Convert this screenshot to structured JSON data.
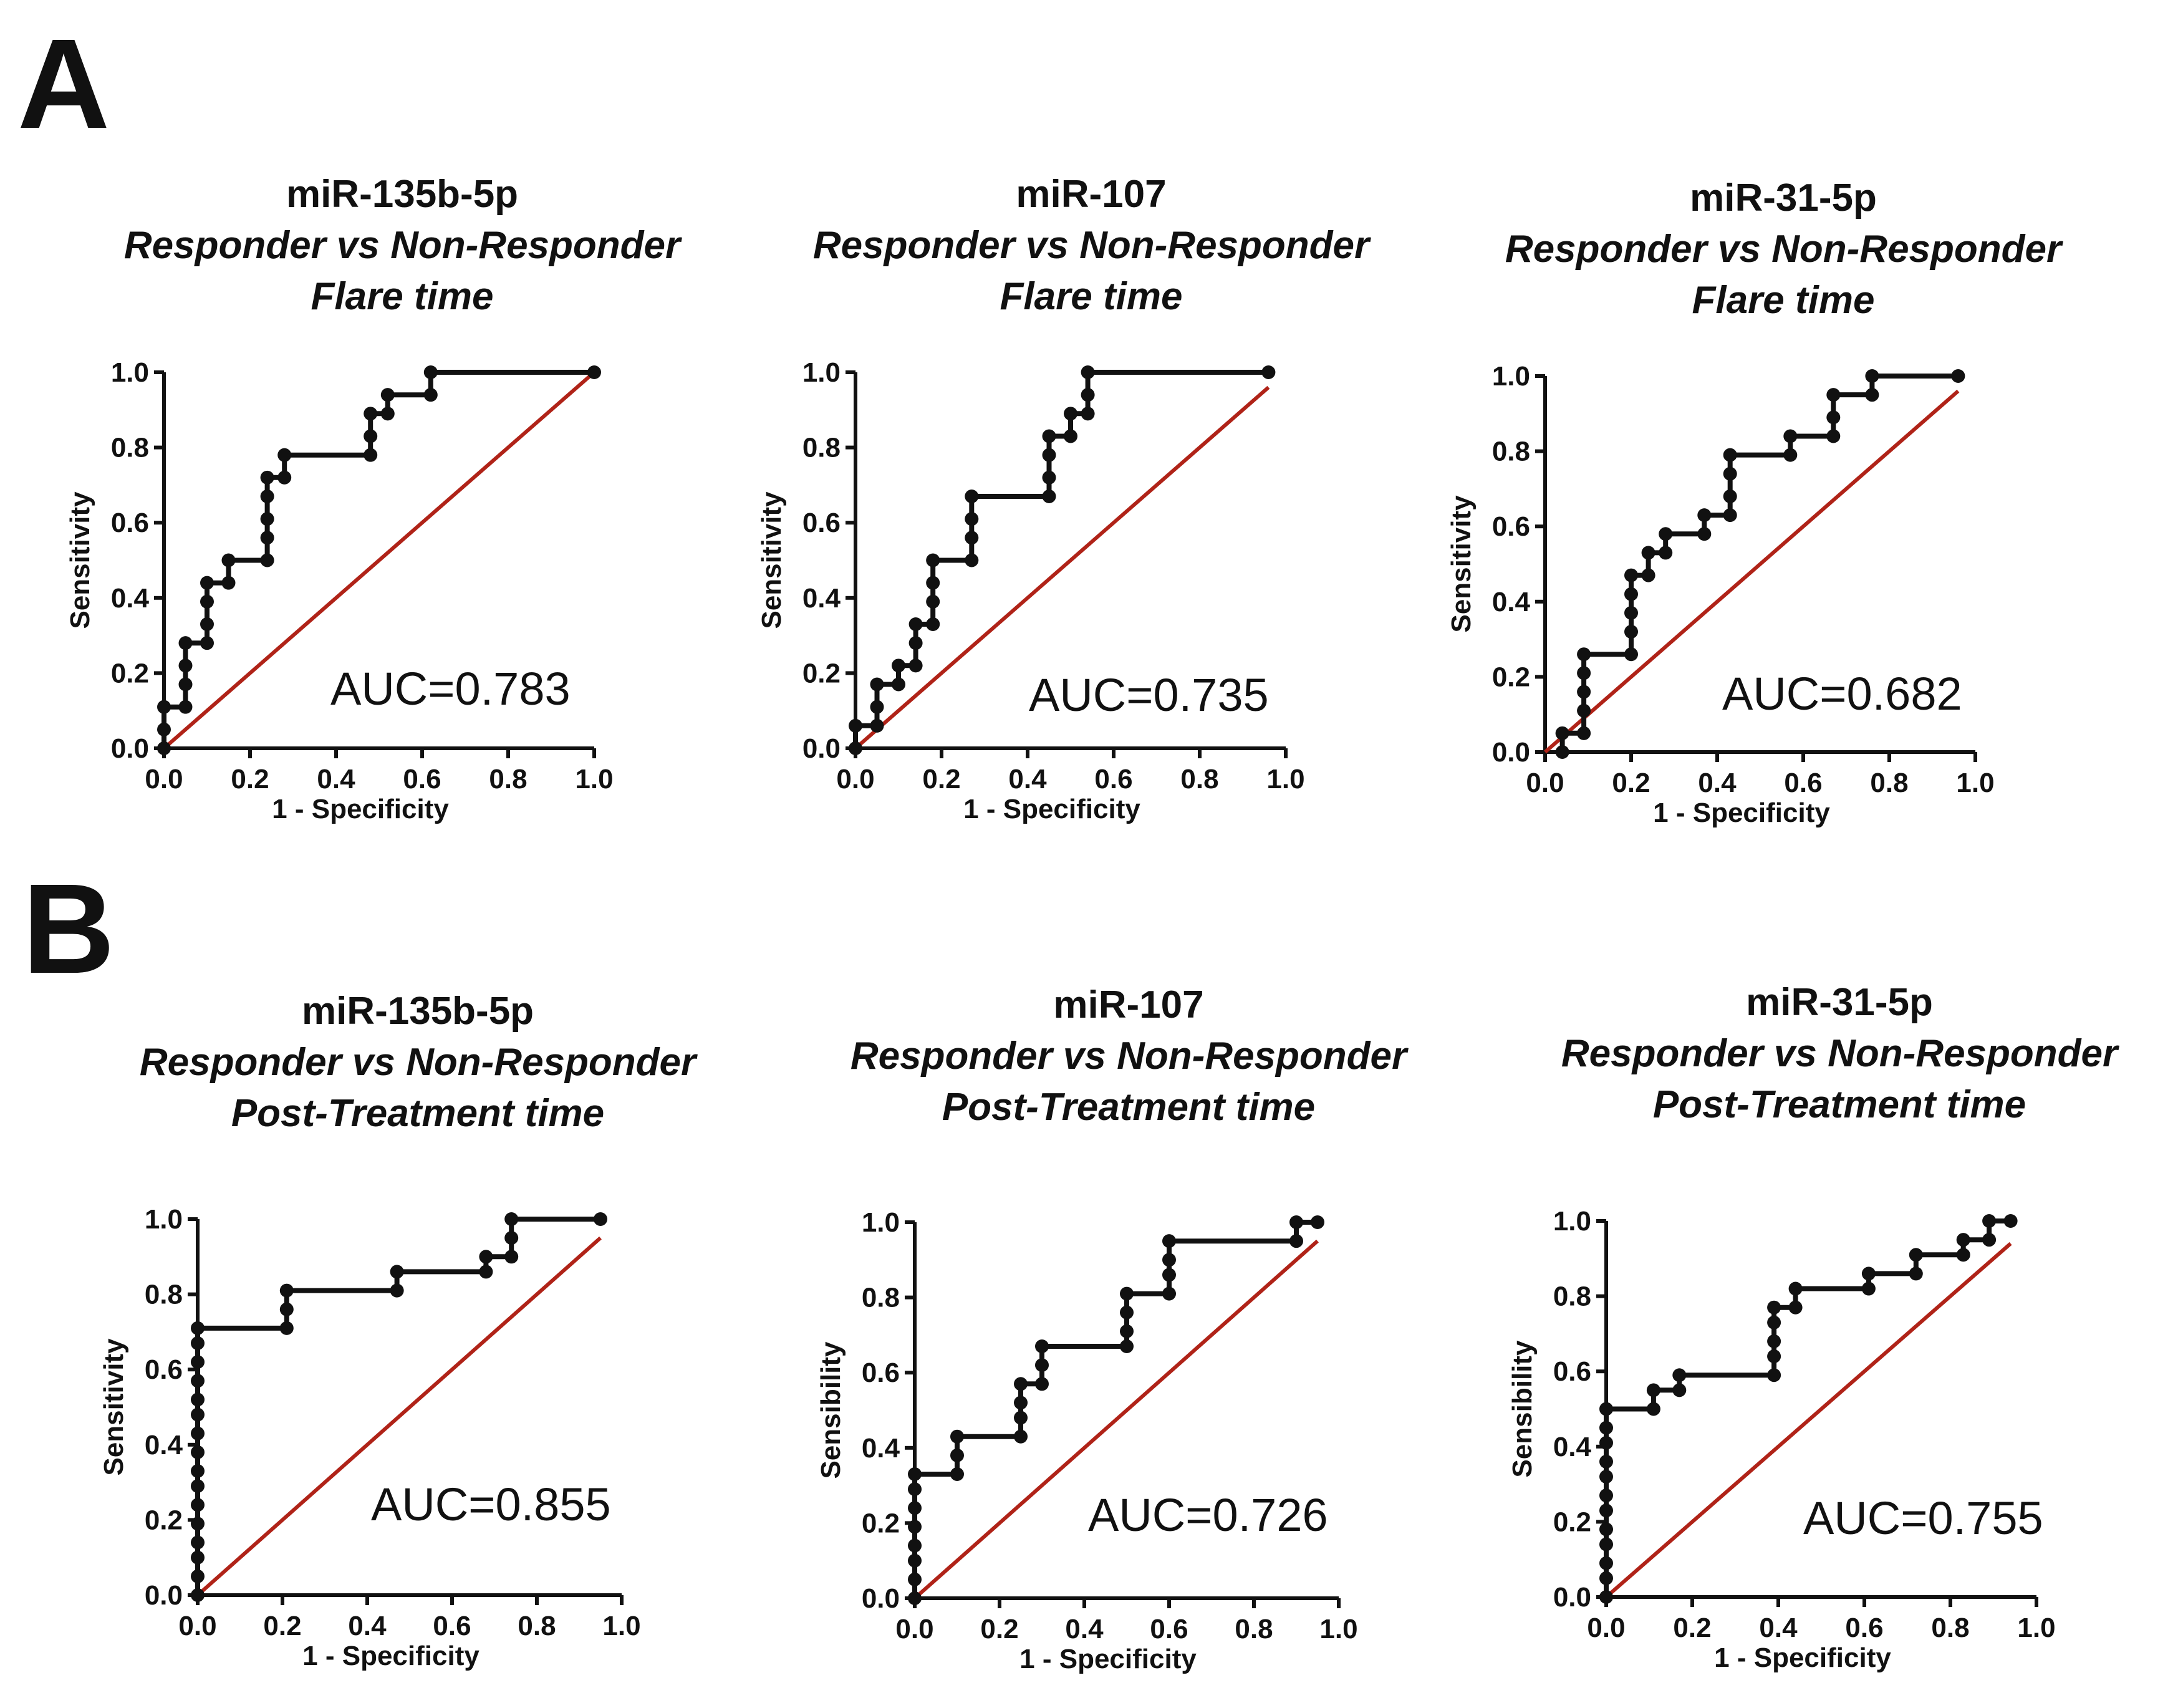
{
  "panel_labels": [
    "A",
    "B"
  ],
  "colors": {
    "roc_curve": "#111111",
    "reference_line": "#b02318",
    "text": "#111111"
  },
  "chart_data": [
    {
      "type": "line",
      "title": [
        "miR-135b-5p",
        "Responder vs Non-Responder",
        "Flare time"
      ],
      "xlabel": "1 - Specificity",
      "ylabel": "Sensitivity",
      "xlim": [
        0,
        1
      ],
      "ylim": [
        0,
        1
      ],
      "ticks": [
        "0.0",
        "0.2",
        "0.4",
        "0.6",
        "0.8",
        "1.0"
      ],
      "annotation": "AUC=0.783",
      "reference_end": [
        1.0,
        1.0
      ],
      "points": [
        [
          0,
          0
        ],
        [
          0,
          0.05
        ],
        [
          0,
          0.11
        ],
        [
          0.05,
          0.11
        ],
        [
          0.05,
          0.17
        ],
        [
          0.05,
          0.22
        ],
        [
          0.05,
          0.28
        ],
        [
          0.1,
          0.28
        ],
        [
          0.1,
          0.33
        ],
        [
          0.1,
          0.39
        ],
        [
          0.1,
          0.44
        ],
        [
          0.15,
          0.44
        ],
        [
          0.15,
          0.5
        ],
        [
          0.24,
          0.5
        ],
        [
          0.24,
          0.56
        ],
        [
          0.24,
          0.61
        ],
        [
          0.24,
          0.67
        ],
        [
          0.24,
          0.72
        ],
        [
          0.28,
          0.72
        ],
        [
          0.28,
          0.78
        ],
        [
          0.48,
          0.78
        ],
        [
          0.48,
          0.83
        ],
        [
          0.48,
          0.89
        ],
        [
          0.52,
          0.89
        ],
        [
          0.52,
          0.94
        ],
        [
          0.62,
          0.94
        ],
        [
          0.62,
          1
        ],
        [
          1,
          1
        ]
      ]
    },
    {
      "type": "line",
      "title": [
        "miR-107",
        "Responder vs Non-Responder",
        "Flare time"
      ],
      "xlabel": "1 - Specificity",
      "ylabel": "Sensitivity",
      "xlim": [
        0,
        1
      ],
      "ylim": [
        0,
        1
      ],
      "ticks": [
        "0.0",
        "0.2",
        "0.4",
        "0.6",
        "0.8",
        "1.0"
      ],
      "annotation": "AUC=0.735",
      "reference_end": [
        0.96,
        0.96
      ],
      "points": [
        [
          0,
          0
        ],
        [
          0,
          0.06
        ],
        [
          0.05,
          0.06
        ],
        [
          0.05,
          0.11
        ],
        [
          0.05,
          0.17
        ],
        [
          0.1,
          0.17
        ],
        [
          0.1,
          0.22
        ],
        [
          0.14,
          0.22
        ],
        [
          0.14,
          0.28
        ],
        [
          0.14,
          0.33
        ],
        [
          0.18,
          0.33
        ],
        [
          0.18,
          0.39
        ],
        [
          0.18,
          0.44
        ],
        [
          0.18,
          0.5
        ],
        [
          0.27,
          0.5
        ],
        [
          0.27,
          0.56
        ],
        [
          0.27,
          0.61
        ],
        [
          0.27,
          0.67
        ],
        [
          0.45,
          0.67
        ],
        [
          0.45,
          0.72
        ],
        [
          0.45,
          0.78
        ],
        [
          0.45,
          0.83
        ],
        [
          0.5,
          0.83
        ],
        [
          0.5,
          0.89
        ],
        [
          0.54,
          0.89
        ],
        [
          0.54,
          0.94
        ],
        [
          0.54,
          1
        ],
        [
          0.96,
          1
        ]
      ]
    },
    {
      "type": "line",
      "title": [
        "miR-31-5p",
        "Responder vs Non-Responder",
        "Flare time"
      ],
      "xlabel": "1 - Specificity",
      "ylabel": "Sensitivity",
      "xlim": [
        0,
        1
      ],
      "ylim": [
        0,
        1
      ],
      "ticks": [
        "0.0",
        "0.2",
        "0.4",
        "0.6",
        "0.8",
        "1.0"
      ],
      "annotation": "AUC=0.682",
      "reference_end": [
        0.96,
        0.96
      ],
      "points": [
        [
          0.04,
          0
        ],
        [
          0.04,
          0.05
        ],
        [
          0.09,
          0.05
        ],
        [
          0.09,
          0.11
        ],
        [
          0.09,
          0.16
        ],
        [
          0.09,
          0.21
        ],
        [
          0.09,
          0.26
        ],
        [
          0.2,
          0.26
        ],
        [
          0.2,
          0.32
        ],
        [
          0.2,
          0.37
        ],
        [
          0.2,
          0.42
        ],
        [
          0.2,
          0.47
        ],
        [
          0.24,
          0.47
        ],
        [
          0.24,
          0.53
        ],
        [
          0.28,
          0.53
        ],
        [
          0.28,
          0.58
        ],
        [
          0.37,
          0.58
        ],
        [
          0.37,
          0.63
        ],
        [
          0.43,
          0.63
        ],
        [
          0.43,
          0.68
        ],
        [
          0.43,
          0.74
        ],
        [
          0.43,
          0.79
        ],
        [
          0.57,
          0.79
        ],
        [
          0.57,
          0.84
        ],
        [
          0.67,
          0.84
        ],
        [
          0.67,
          0.89
        ],
        [
          0.67,
          0.95
        ],
        [
          0.76,
          0.95
        ],
        [
          0.76,
          1
        ],
        [
          0.96,
          1
        ]
      ]
    },
    {
      "type": "line",
      "title": [
        "miR-135b-5p",
        "Responder vs Non-Responder",
        "Post-Treatment time"
      ],
      "xlabel": "1 - Specificity",
      "ylabel": "Sensitivity",
      "xlim": [
        0,
        1
      ],
      "ylim": [
        0,
        1
      ],
      "ticks": [
        "0.0",
        "0.2",
        "0.4",
        "0.6",
        "0.8",
        "1.0"
      ],
      "annotation": "AUC=0.855",
      "reference_end": [
        0.95,
        0.95
      ],
      "points": [
        [
          0,
          0
        ],
        [
          0,
          0.05
        ],
        [
          0,
          0.1
        ],
        [
          0,
          0.14
        ],
        [
          0,
          0.19
        ],
        [
          0,
          0.24
        ],
        [
          0,
          0.29
        ],
        [
          0,
          0.33
        ],
        [
          0,
          0.38
        ],
        [
          0,
          0.43
        ],
        [
          0,
          0.48
        ],
        [
          0,
          0.52
        ],
        [
          0,
          0.57
        ],
        [
          0,
          0.62
        ],
        [
          0,
          0.67
        ],
        [
          0,
          0.71
        ],
        [
          0.21,
          0.71
        ],
        [
          0.21,
          0.76
        ],
        [
          0.21,
          0.81
        ],
        [
          0.47,
          0.81
        ],
        [
          0.47,
          0.86
        ],
        [
          0.68,
          0.86
        ],
        [
          0.68,
          0.9
        ],
        [
          0.74,
          0.9
        ],
        [
          0.74,
          0.95
        ],
        [
          0.74,
          1
        ],
        [
          0.95,
          1
        ]
      ]
    },
    {
      "type": "line",
      "title": [
        "miR-107",
        "Responder vs Non-Responder",
        "Post-Treatment time"
      ],
      "xlabel": "1 - Specificity",
      "ylabel": "Sensibility",
      "xlim": [
        0,
        1
      ],
      "ylim": [
        0,
        1
      ],
      "ticks": [
        "0.0",
        "0.2",
        "0.4",
        "0.6",
        "0.8",
        "1.0"
      ],
      "annotation": "AUC=0.726",
      "reference_end": [
        0.95,
        0.95
      ],
      "points": [
        [
          0,
          0
        ],
        [
          0,
          0.05
        ],
        [
          0,
          0.1
        ],
        [
          0,
          0.14
        ],
        [
          0,
          0.19
        ],
        [
          0,
          0.24
        ],
        [
          0,
          0.29
        ],
        [
          0,
          0.33
        ],
        [
          0.1,
          0.33
        ],
        [
          0.1,
          0.38
        ],
        [
          0.1,
          0.43
        ],
        [
          0.25,
          0.43
        ],
        [
          0.25,
          0.48
        ],
        [
          0.25,
          0.52
        ],
        [
          0.25,
          0.57
        ],
        [
          0.3,
          0.57
        ],
        [
          0.3,
          0.62
        ],
        [
          0.3,
          0.67
        ],
        [
          0.5,
          0.67
        ],
        [
          0.5,
          0.71
        ],
        [
          0.5,
          0.76
        ],
        [
          0.5,
          0.81
        ],
        [
          0.6,
          0.81
        ],
        [
          0.6,
          0.86
        ],
        [
          0.6,
          0.9
        ],
        [
          0.6,
          0.95
        ],
        [
          0.9,
          0.95
        ],
        [
          0.9,
          1
        ],
        [
          0.95,
          1
        ]
      ]
    },
    {
      "type": "line",
      "title": [
        "miR-31-5p",
        "Responder vs Non-Responder",
        "Post-Treatment time"
      ],
      "xlabel": "1 - Specificity",
      "ylabel": "Sensibility",
      "xlim": [
        0,
        1
      ],
      "ylim": [
        0,
        1
      ],
      "ticks": [
        "0.0",
        "0.2",
        "0.4",
        "0.6",
        "0.8",
        "1.0"
      ],
      "annotation": "AUC=0.755",
      "reference_end": [
        0.94,
        0.94
      ],
      "points": [
        [
          0,
          0
        ],
        [
          0,
          0.05
        ],
        [
          0,
          0.09
        ],
        [
          0,
          0.14
        ],
        [
          0,
          0.18
        ],
        [
          0,
          0.23
        ],
        [
          0,
          0.27
        ],
        [
          0,
          0.32
        ],
        [
          0,
          0.36
        ],
        [
          0,
          0.41
        ],
        [
          0,
          0.45
        ],
        [
          0,
          0.5
        ],
        [
          0.11,
          0.5
        ],
        [
          0.11,
          0.55
        ],
        [
          0.17,
          0.55
        ],
        [
          0.17,
          0.59
        ],
        [
          0.39,
          0.59
        ],
        [
          0.39,
          0.64
        ],
        [
          0.39,
          0.68
        ],
        [
          0.39,
          0.73
        ],
        [
          0.39,
          0.77
        ],
        [
          0.44,
          0.77
        ],
        [
          0.44,
          0.82
        ],
        [
          0.61,
          0.82
        ],
        [
          0.61,
          0.86
        ],
        [
          0.72,
          0.86
        ],
        [
          0.72,
          0.91
        ],
        [
          0.83,
          0.91
        ],
        [
          0.83,
          0.95
        ],
        [
          0.89,
          0.95
        ],
        [
          0.89,
          1
        ],
        [
          0.94,
          1
        ]
      ]
    }
  ]
}
